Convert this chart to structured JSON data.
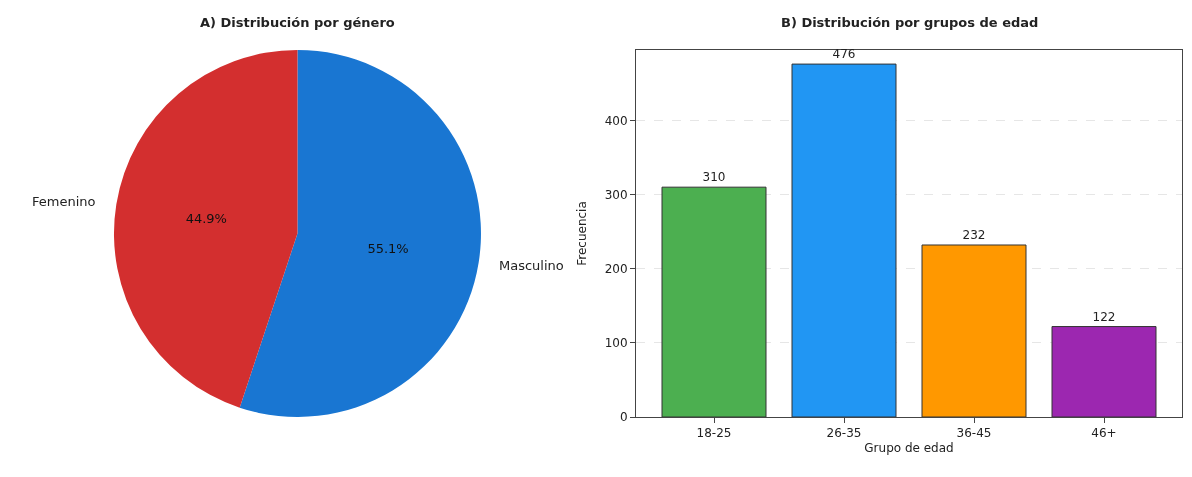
{
  "chart_data": [
    {
      "type": "pie",
      "title": "A) Distribución por género",
      "categories": [
        "Masculino",
        "Femenino"
      ],
      "values": [
        55.1,
        44.9
      ],
      "colors": [
        "#1976d2",
        "#d32f2f"
      ],
      "value_labels": [
        "55.1%",
        "44.9%"
      ]
    },
    {
      "type": "bar",
      "title": "B) Distribución por grupos de edad",
      "xlabel": "Grupo de edad",
      "ylabel": "Frecuencia",
      "categories": [
        "18-25",
        "26-35",
        "36-45",
        "46+"
      ],
      "values": [
        310,
        476,
        232,
        122
      ],
      "colors": [
        "#4caf50",
        "#2196f3",
        "#ff9800",
        "#9c27b0"
      ],
      "ylim": [
        0,
        495
      ],
      "yticks": [
        0,
        100,
        200,
        300,
        400
      ],
      "grid": "y",
      "data_labels": true
    }
  ]
}
